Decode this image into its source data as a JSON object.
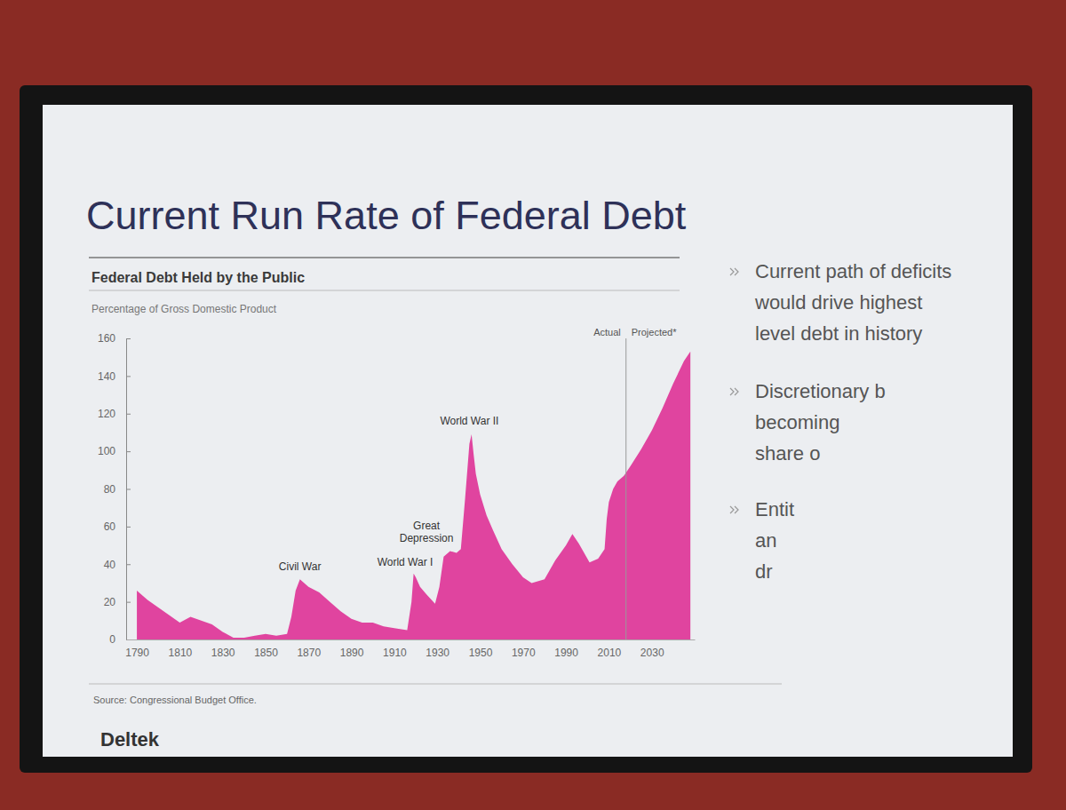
{
  "slide": {
    "title": "Current Run Rate of Federal Debt",
    "bullets": [
      [
        "Current path of deficits",
        "would drive highest",
        "level debt in history"
      ],
      [
        "Discretionary b",
        "becoming",
        "share o"
      ],
      [
        "Entit",
        "an",
        "dr"
      ]
    ],
    "logo": "Deltek"
  },
  "chart_data": {
    "type": "area",
    "title": "Federal Debt Held by the Public",
    "subtitle": "Percentage of Gross Domestic Product",
    "x": [
      1790,
      1795,
      1800,
      1805,
      1810,
      1815,
      1820,
      1825,
      1830,
      1835,
      1840,
      1845,
      1850,
      1855,
      1860,
      1862,
      1864,
      1866,
      1868,
      1870,
      1875,
      1880,
      1885,
      1890,
      1895,
      1900,
      1905,
      1910,
      1916,
      1918,
      1919,
      1920,
      1922,
      1925,
      1929,
      1931,
      1933,
      1936,
      1939,
      1941,
      1943,
      1945,
      1946,
      1947,
      1948,
      1950,
      1953,
      1956,
      1960,
      1965,
      1970,
      1974,
      1980,
      1985,
      1990,
      1993,
      1996,
      2001,
      2005,
      2008,
      2009,
      2010,
      2012,
      2014,
      2017,
      2020,
      2025,
      2030,
      2035,
      2040,
      2045,
      2048
    ],
    "values": [
      26,
      21,
      17,
      13,
      9,
      12,
      10,
      8,
      4,
      1,
      1,
      2,
      3,
      2,
      3,
      12,
      26,
      32,
      30,
      28,
      25,
      20,
      15,
      11,
      9,
      9,
      7,
      6,
      5,
      20,
      35,
      33,
      28,
      24,
      19,
      28,
      44,
      47,
      46,
      48,
      75,
      104,
      109,
      98,
      88,
      77,
      66,
      58,
      48,
      40,
      33,
      30,
      32,
      42,
      50,
      56,
      51,
      41,
      43,
      48,
      64,
      73,
      80,
      84,
      87,
      92,
      101,
      111,
      123,
      136,
      148,
      153
    ],
    "color": "#e0449f",
    "xlim": [
      1785,
      2050
    ],
    "xticks": [
      1790,
      1810,
      1830,
      1850,
      1870,
      1890,
      1910,
      1930,
      1950,
      1970,
      1990,
      2010,
      2030
    ],
    "ylim": [
      0,
      160
    ],
    "yticks": [
      0,
      20,
      40,
      60,
      80,
      100,
      120,
      140,
      160
    ],
    "grid": false,
    "annotations": [
      {
        "text": "Civil War",
        "x": 1866,
        "y": 37
      },
      {
        "text": "World War I",
        "x": 1915,
        "y": 39
      },
      {
        "text": "Great Depression",
        "x": 1925,
        "y": 52
      },
      {
        "text": "World War II",
        "x": 1945,
        "y": 114
      }
    ],
    "projection_start": 2018,
    "period_labels": [
      "Actual",
      "Projected*"
    ],
    "source": "Source: Congressional Budget Office."
  }
}
